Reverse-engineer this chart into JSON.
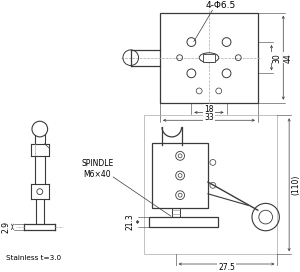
{
  "bg_color": "#ffffff",
  "line_color": "#3a3a3a",
  "dim_color": "#3a3a3a",
  "text_color": "#000000",
  "gray_line": "#aaaaaa",
  "fig_width": 3.0,
  "fig_height": 2.72,
  "dpi": 100,
  "annotations": {
    "top_label": "4-Φ6.5",
    "dim_30": "30",
    "dim_44": "44",
    "dim_18": "18",
    "dim_33": "33",
    "spindle": "SPINDLE\nM6×40",
    "dim_29": "2.9",
    "dim_21": "21.3",
    "dim_110": "(110)",
    "dim_275": "27.5",
    "stainless": "Stainless t=3.0"
  }
}
